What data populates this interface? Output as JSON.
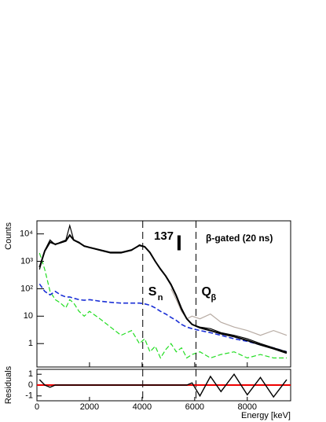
{
  "chart_data": {
    "type": "line",
    "xlabel": "Energy [keV]",
    "ylabel": "Counts",
    "ylog": true,
    "x": [
      100,
      300,
      500,
      700,
      900,
      1100,
      1250,
      1400,
      1600,
      1800,
      2000,
      2400,
      2800,
      3200,
      3600,
      3900,
      4100,
      4300,
      4500,
      4700,
      4900,
      5100,
      5300,
      5500,
      5700,
      5900,
      6200,
      6600,
      7000,
      7500,
      8000,
      8500,
      9000,
      9500
    ],
    "xlim": [
      0,
      9650
    ],
    "xticks": [
      0,
      2000,
      4000,
      6000,
      8000
    ],
    "ylim": [
      0.14,
      30000
    ],
    "yticks": [
      1,
      10,
      {
        "value": 100,
        "label": "10²"
      },
      {
        "value": 1000,
        "label": "10³"
      },
      {
        "value": 10000,
        "label": "10⁴"
      }
    ],
    "series": [
      {
        "color": "#b8aca4",
        "dash": false,
        "width": 1.2,
        "values": [
          null,
          null,
          null,
          null,
          null,
          null,
          null,
          null,
          null,
          null,
          null,
          null,
          null,
          null,
          null,
          null,
          null,
          null,
          null,
          null,
          null,
          100,
          40,
          15,
          8,
          10,
          8,
          12,
          6,
          4,
          3,
          2,
          3,
          2
        ]
      },
      {
        "color": "#22dd22",
        "dash": true,
        "width": 1.2,
        "values": [
          2000,
          500,
          80,
          40,
          30,
          20,
          40,
          30,
          15,
          10,
          15,
          8,
          4,
          2,
          3,
          1,
          1.5,
          0.5,
          0.8,
          0.3,
          0.6,
          1,
          0.5,
          0.7,
          0.3,
          0.4,
          0.5,
          0.3,
          0.4,
          0.5,
          0.3,
          0.4,
          0.3,
          0.3
        ]
      },
      {
        "color": "#1a2fd6",
        "dash": true,
        "width": 1.6,
        "values": [
          150,
          80,
          60,
          80,
          60,
          50,
          50,
          45,
          40,
          38,
          40,
          35,
          32,
          30,
          30,
          30,
          28,
          25,
          20,
          15,
          12,
          9,
          7,
          5,
          4,
          3.5,
          3,
          2.5,
          2,
          1.5,
          1.2,
          0.9,
          0.7,
          0.5
        ]
      },
      {
        "color": "#000000",
        "dash": false,
        "width": 1.2,
        "values": [
          500,
          2500,
          6000,
          4000,
          5000,
          6000,
          20000,
          6000,
          5000,
          3500,
          3200,
          2500,
          2000,
          2000,
          2500,
          4000,
          3500,
          2000,
          1000,
          500,
          300,
          150,
          60,
          20,
          8,
          5,
          4,
          3.5,
          2.5,
          2,
          1.5,
          1,
          0.7,
          0.5
        ]
      },
      {
        "color": "#000000",
        "dash": false,
        "width": 2,
        "values": [
          600,
          2400,
          5000,
          4200,
          4800,
          5500,
          9000,
          6000,
          4800,
          3600,
          3200,
          2600,
          2100,
          2100,
          2600,
          3800,
          3400,
          2100,
          1000,
          520,
          290,
          140,
          55,
          18,
          8,
          5,
          3.8,
          3,
          2.3,
          1.8,
          1.3,
          0.9,
          0.65,
          0.45
        ]
      }
    ],
    "nucleus": {
      "mass": "137",
      "symbol": "I"
    },
    "note": "β-gated (20 ns)",
    "markers": [
      {
        "x": 4025,
        "symbol": "S",
        "subscript": "n"
      },
      {
        "x": 6050,
        "symbol": "Q",
        "subscript": "β"
      }
    ],
    "residuals": {
      "ylabel": "Residuals",
      "ylim": [
        -1.45,
        1.45
      ],
      "yticks": [
        -1,
        0,
        1
      ],
      "reference": 0,
      "reference_color": "#ee0000",
      "color": "#000000",
      "values": [
        0.5,
        0,
        -0.2,
        0,
        0,
        0,
        0,
        0,
        0,
        0,
        0,
        0,
        0,
        0,
        0,
        0,
        0,
        0,
        0,
        0,
        0,
        0,
        0,
        0,
        0,
        0.2,
        -1,
        0.8,
        -0.6,
        1,
        -0.9,
        0.7,
        -1.1,
        0.5
      ]
    }
  }
}
